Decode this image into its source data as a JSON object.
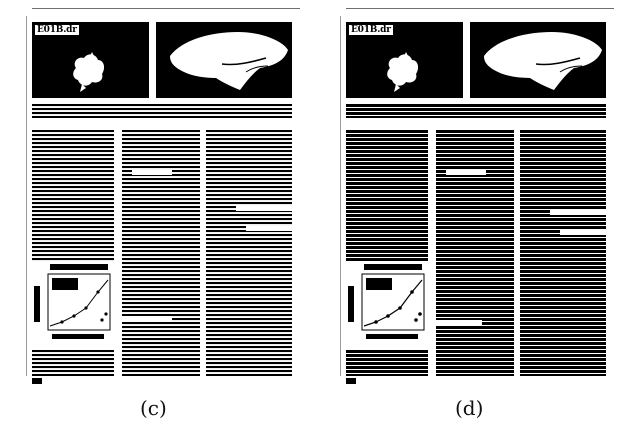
{
  "figure": {
    "panels": [
      {
        "id": "c",
        "label": "(c)",
        "photo_label": "E01B.dr",
        "rendering": "binarized"
      },
      {
        "id": "d",
        "label": "(d)",
        "photo_label": "E01B.dr",
        "rendering": "binarized-heavy"
      }
    ]
  },
  "colors": {
    "ink": "#000000",
    "paper": "#ffffff"
  }
}
